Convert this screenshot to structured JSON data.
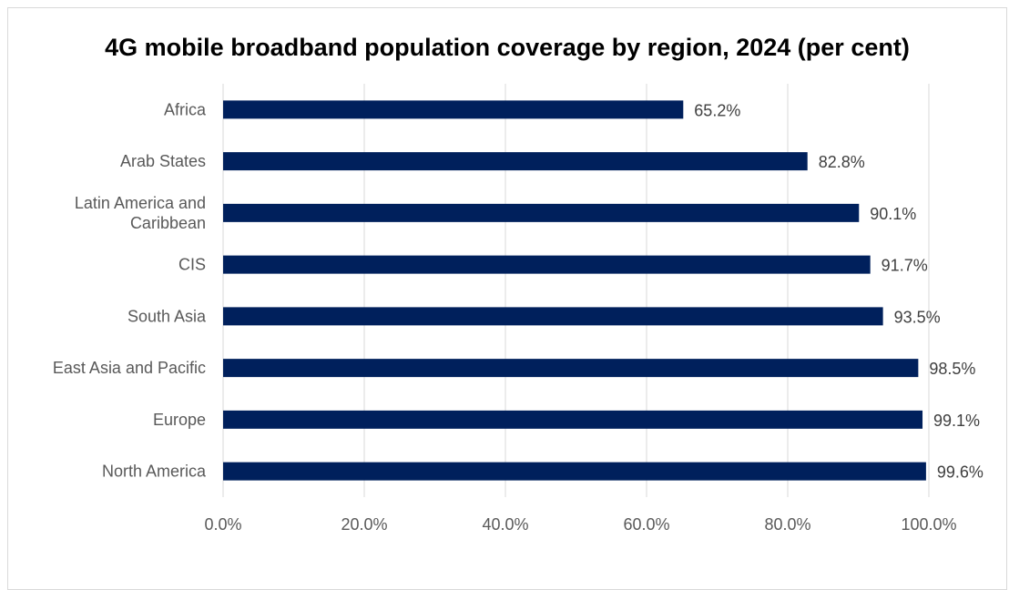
{
  "chart_data": {
    "type": "bar",
    "orientation": "horizontal",
    "title": "4G mobile broadband population coverage by region, 2024 (per cent)",
    "categories": [
      "Africa",
      "Arab States",
      "Latin America and Caribbean",
      "CIS",
      "South Asia",
      "East Asia and Pacific",
      "Europe",
      "North America"
    ],
    "category_lines": [
      [
        "Africa"
      ],
      [
        "Arab States"
      ],
      [
        "Latin America and",
        "Caribbean"
      ],
      [
        "CIS"
      ],
      [
        "South Asia"
      ],
      [
        "East Asia and Pacific"
      ],
      [
        "Europe"
      ],
      [
        "North America"
      ]
    ],
    "values": [
      65.2,
      82.8,
      90.1,
      91.7,
      93.5,
      98.5,
      99.1,
      99.6
    ],
    "data_labels": [
      "65.2%",
      "82.8%",
      "90.1%",
      "91.7%",
      "93.5%",
      "98.5%",
      "99.1%",
      "99.6%"
    ],
    "xlim": [
      0,
      100
    ],
    "xticks": [
      0,
      20,
      40,
      60,
      80,
      100
    ],
    "xtick_labels": [
      "0.0%",
      "20.0%",
      "40.0%",
      "60.0%",
      "80.0%",
      "100.0%"
    ],
    "xlabel": "",
    "ylabel": "",
    "grid": "vertical",
    "legend": "none",
    "bar_color": "#00205c",
    "grid_color": "#d9d9d9",
    "text_color": "#595959"
  }
}
